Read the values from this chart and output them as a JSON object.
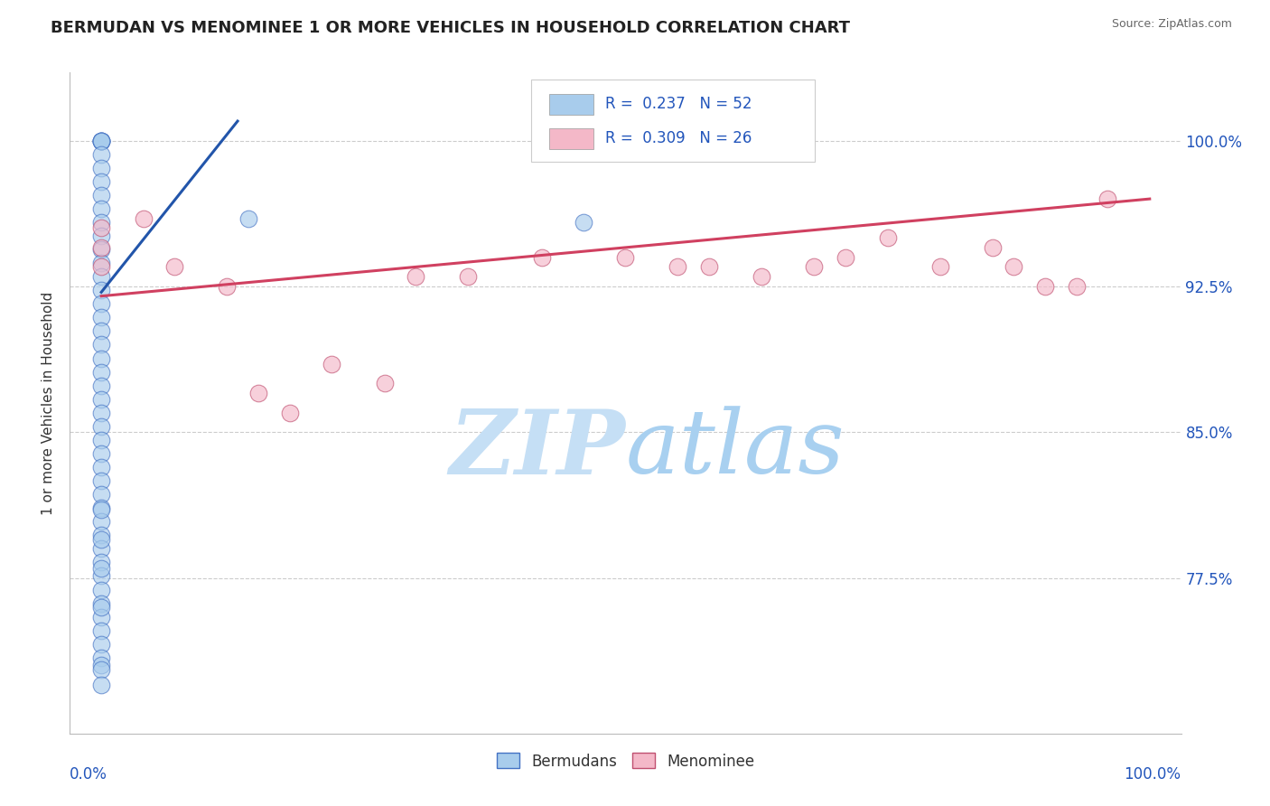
{
  "title": "BERMUDAN VS MENOMINEE 1 OR MORE VEHICLES IN HOUSEHOLD CORRELATION CHART",
  "source": "Source: ZipAtlas.com",
  "ylabel": "1 or more Vehicles in Household",
  "legend_R_blue": "0.237",
  "legend_N_blue": "52",
  "legend_R_pink": "0.309",
  "legend_N_pink": "26",
  "blue_fill": "#a8ccec",
  "blue_edge": "#4472c4",
  "pink_fill": "#f4b8c8",
  "pink_edge": "#c05070",
  "blue_line_color": "#2255aa",
  "pink_line_color": "#d04060",
  "watermark_text": "ZIPatlas",
  "watermark_color": "#d8eaf8",
  "grid_color": "#cccccc",
  "title_color": "#222222",
  "source_color": "#666666",
  "axis_label_color": "#2255bb",
  "ytick_values": [
    0.775,
    0.85,
    0.925,
    1.0
  ],
  "ytick_labels": [
    "77.5%",
    "85.0%",
    "92.5%",
    "100.0%"
  ],
  "xlim": [
    -0.03,
    1.03
  ],
  "ylim": [
    0.695,
    1.035
  ],
  "bermudans_x": [
    0.0,
    0.0,
    0.0,
    0.0,
    0.0,
    0.0,
    0.0,
    0.0,
    0.0,
    0.0,
    0.0,
    0.0,
    0.0,
    0.0,
    0.0,
    0.0,
    0.0,
    0.0,
    0.0,
    0.0,
    0.0,
    0.0,
    0.0,
    0.0,
    0.0,
    0.0,
    0.0,
    0.0,
    0.0,
    0.0,
    0.0,
    0.0,
    0.0,
    0.0,
    0.0,
    0.0,
    0.0,
    0.0,
    0.0,
    0.0,
    0.0,
    0.0,
    0.0,
    0.0,
    0.0,
    0.0,
    0.0,
    0.0,
    0.0,
    0.0,
    0.14,
    0.46
  ],
  "bermudans_y": [
    1.0,
    1.0,
    1.0,
    1.0,
    1.0,
    0.993,
    0.986,
    0.979,
    0.972,
    0.965,
    0.958,
    0.951,
    0.944,
    0.937,
    0.93,
    0.923,
    0.916,
    0.909,
    0.902,
    0.895,
    0.888,
    0.881,
    0.874,
    0.867,
    0.86,
    0.853,
    0.846,
    0.839,
    0.832,
    0.825,
    0.818,
    0.811,
    0.804,
    0.797,
    0.79,
    0.783,
    0.776,
    0.769,
    0.762,
    0.755,
    0.748,
    0.741,
    0.734,
    0.73,
    0.728,
    0.795,
    0.81,
    0.78,
    0.76,
    0.72,
    0.96,
    0.958
  ],
  "menominee_x": [
    0.0,
    0.0,
    0.0,
    0.04,
    0.07,
    0.12,
    0.18,
    0.27,
    0.3,
    0.35,
    0.5,
    0.58,
    0.63,
    0.68,
    0.71,
    0.75,
    0.8,
    0.85,
    0.87,
    0.9,
    0.93,
    0.96,
    0.15,
    0.22,
    0.42,
    0.55
  ],
  "menominee_y": [
    0.955,
    0.945,
    0.935,
    0.96,
    0.935,
    0.925,
    0.86,
    0.875,
    0.93,
    0.93,
    0.94,
    0.935,
    0.93,
    0.935,
    0.94,
    0.95,
    0.935,
    0.945,
    0.935,
    0.925,
    0.925,
    0.97,
    0.87,
    0.885,
    0.94,
    0.935
  ],
  "blue_line_x": [
    0.0,
    0.13
  ],
  "blue_line_y": [
    0.922,
    1.01
  ],
  "pink_line_x": [
    0.0,
    1.0
  ],
  "pink_line_y": [
    0.92,
    0.97
  ]
}
